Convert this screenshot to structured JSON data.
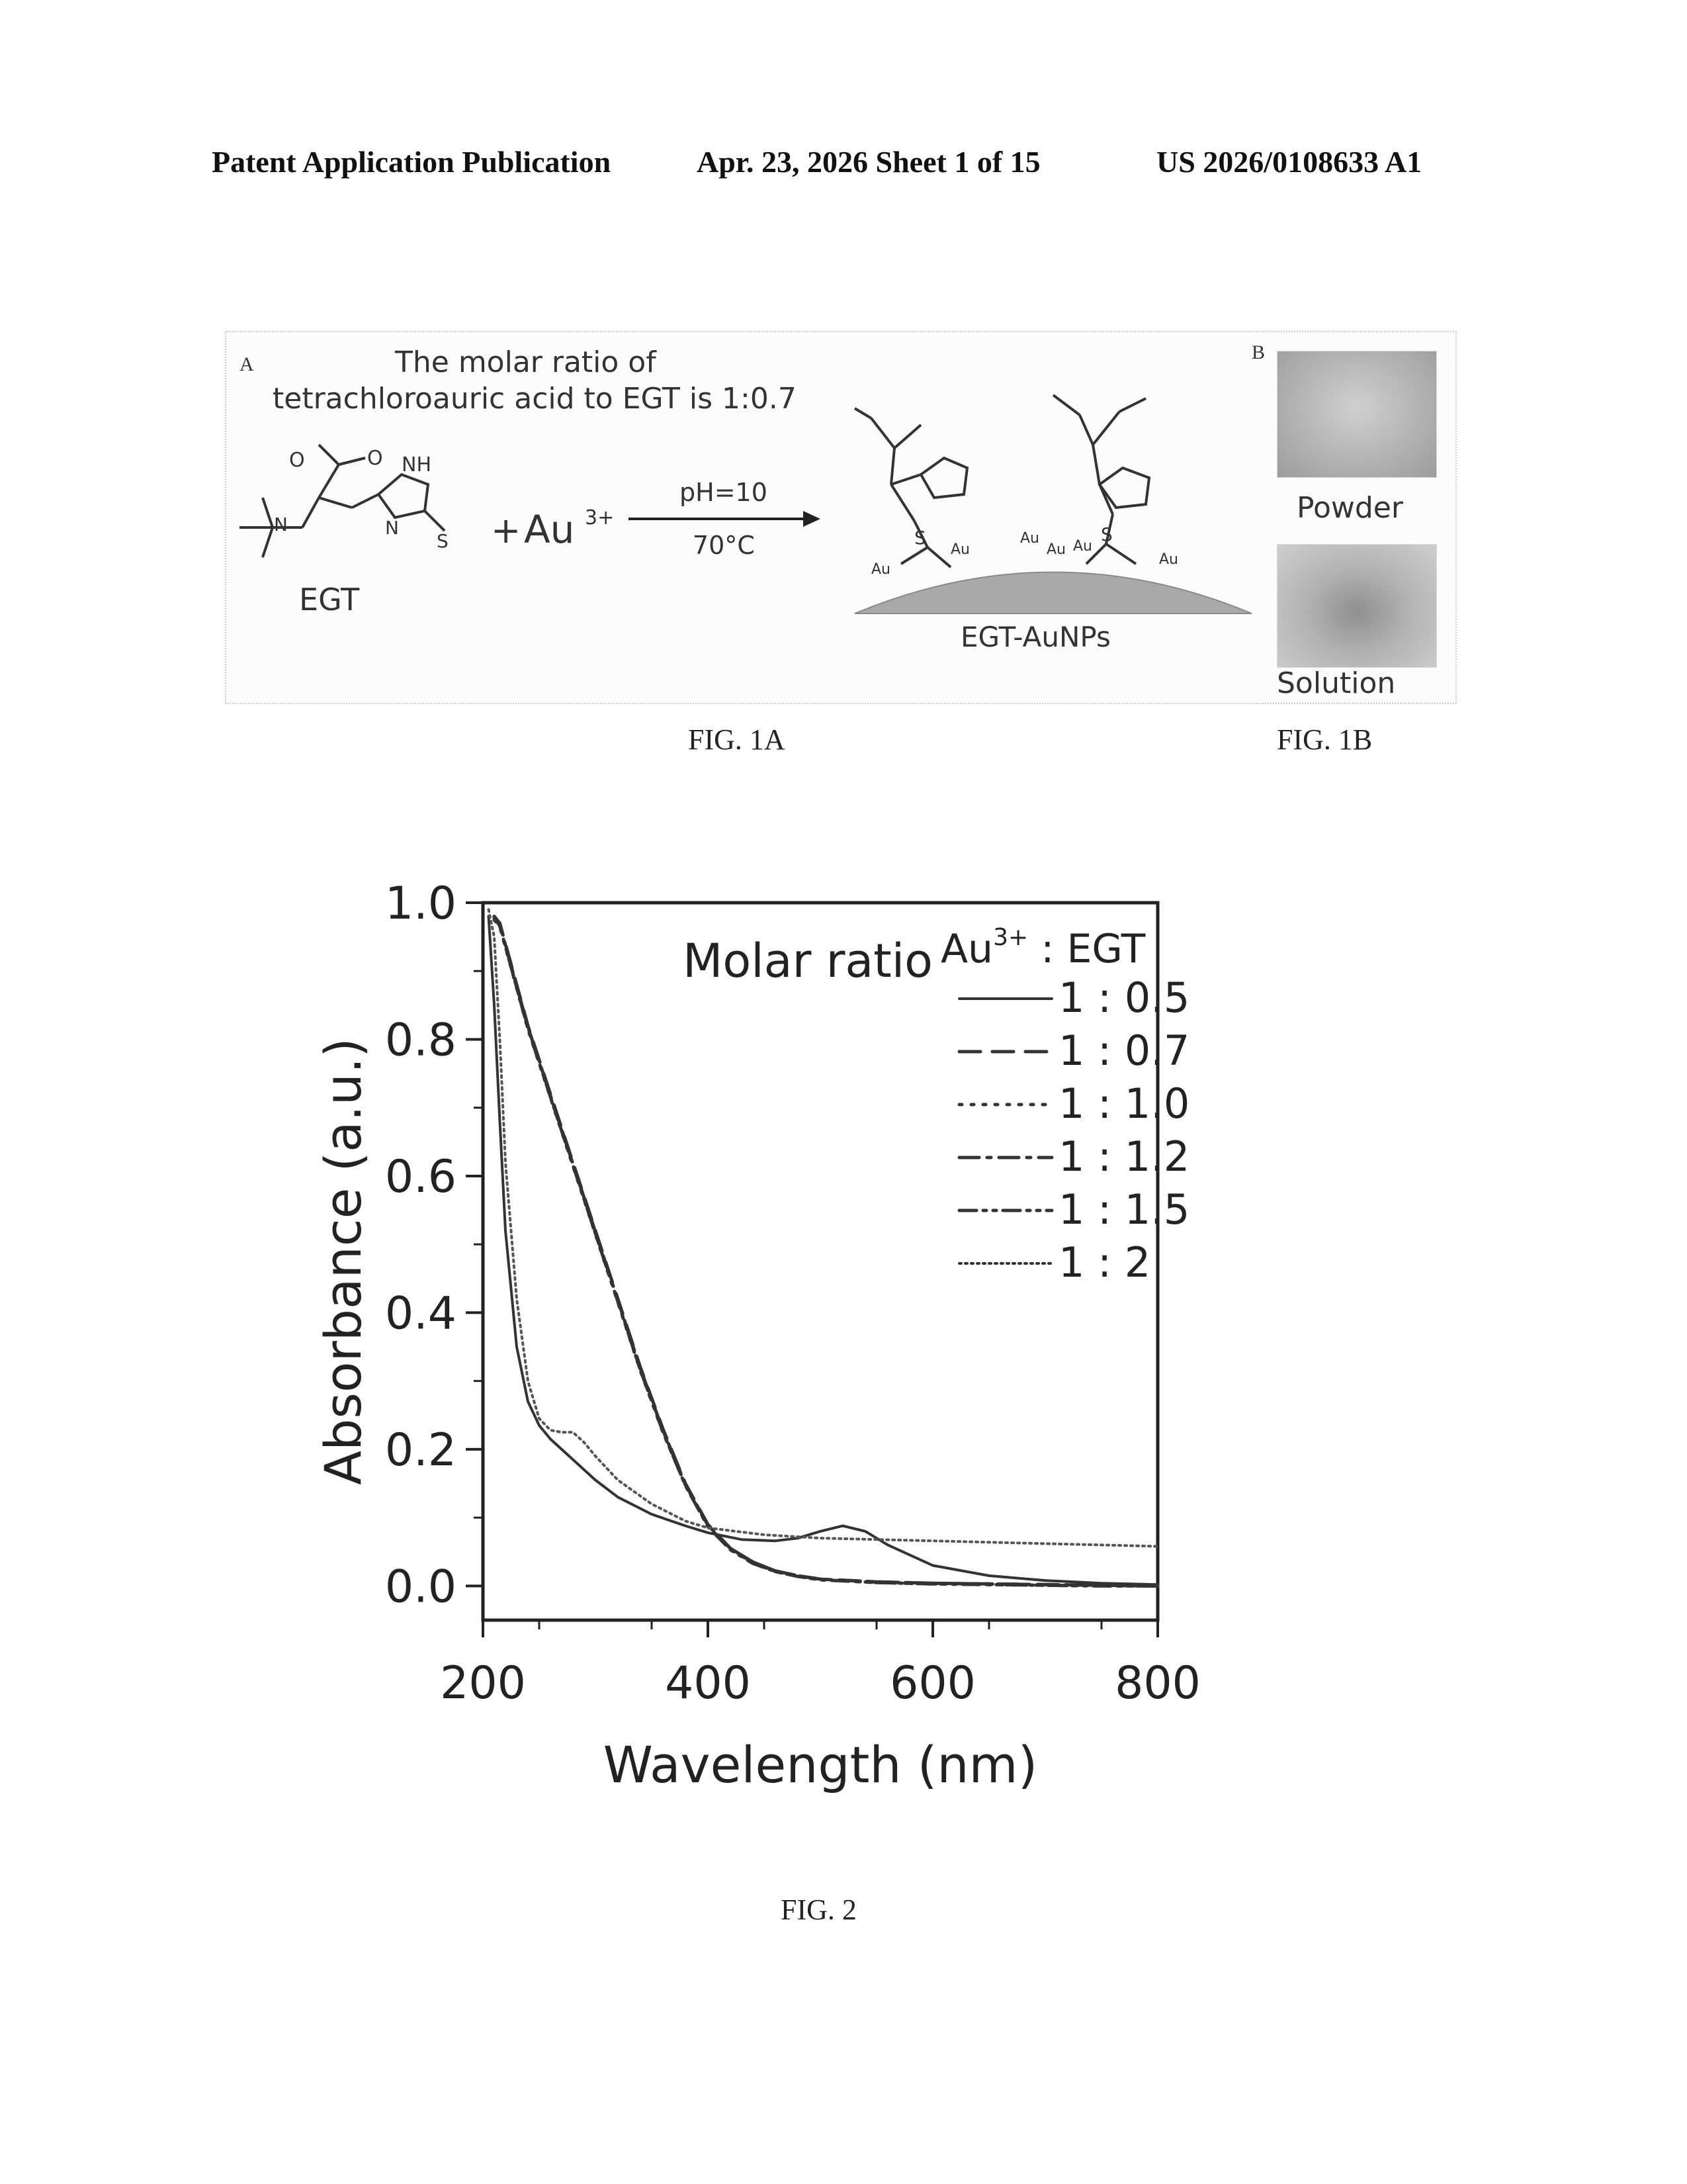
{
  "header": {
    "left": "Patent Application Publication",
    "middle": "Apr. 23, 2026  Sheet 1 of 15",
    "right": "US 2026/0108633 A1"
  },
  "fig1a": {
    "panel_letter": "A",
    "note_line1": "The molar ratio of",
    "note_line2": "tetrachloroauric acid to EGT is 1:0.7",
    "reactant_label": "EGT",
    "plus": "+",
    "reagent": "Au",
    "reagent_charge": "3+",
    "condition_top": "pH=10",
    "condition_bottom": "70°C",
    "product_label": "EGT-AuNPs",
    "surface_atoms": [
      "Au",
      "Au",
      "Au",
      "Au",
      "Au",
      "Au"
    ],
    "caption": "FIG. 1A"
  },
  "fig1b": {
    "panel_letter": "B",
    "photo_top_label": "Powder",
    "photo_bottom_label": "Solution",
    "caption": "FIG. 1B"
  },
  "fig2": {
    "caption": "FIG. 2"
  },
  "chart_data": {
    "type": "line",
    "xlabel": "Wavelength (nm)",
    "ylabel": "Absorbance (a.u.)",
    "xlim": [
      200,
      800
    ],
    "ylim": [
      -0.05,
      1.0
    ],
    "xticks": [
      200,
      400,
      600,
      800
    ],
    "yticks": [
      0.0,
      0.2,
      0.4,
      0.6,
      0.8,
      1.0
    ],
    "xtick_labels": [
      "200",
      "400",
      "600",
      "800"
    ],
    "ytick_labels": [
      "0.0",
      "0.2",
      "0.4",
      "0.6",
      "0.8",
      "1.0"
    ],
    "legend": {
      "title": "Molar ratio",
      "header": "Au",
      "header_sup": "3+",
      "header_suffix": " : EGT",
      "placement": "top-right"
    },
    "grid": false,
    "series": [
      {
        "name": "1 : 0.5",
        "dash": "solid",
        "x": [
          205,
          210,
          215,
          220,
          230,
          240,
          250,
          260,
          270,
          280,
          300,
          320,
          350,
          380,
          400,
          430,
          460,
          480,
          500,
          520,
          540,
          560,
          600,
          650,
          700,
          750,
          800
        ],
        "y": [
          0.98,
          0.85,
          0.68,
          0.52,
          0.35,
          0.27,
          0.235,
          0.215,
          0.2,
          0.185,
          0.155,
          0.13,
          0.105,
          0.088,
          0.078,
          0.068,
          0.066,
          0.07,
          0.08,
          0.088,
          0.08,
          0.06,
          0.03,
          0.015,
          0.008,
          0.004,
          0.002
        ]
      },
      {
        "name": "1 : 0.7",
        "dash": "long-dash",
        "x": [
          210,
          215,
          220,
          230,
          240,
          260,
          280,
          300,
          320,
          340,
          360,
          380,
          400,
          420,
          440,
          460,
          480,
          500,
          550,
          600,
          650,
          700,
          750,
          800
        ],
        "y": [
          0.98,
          0.97,
          0.94,
          0.88,
          0.82,
          0.72,
          0.62,
          0.52,
          0.42,
          0.32,
          0.23,
          0.15,
          0.09,
          0.055,
          0.035,
          0.022,
          0.015,
          0.01,
          0.006,
          0.004,
          0.003,
          0.002,
          0.001,
          0.0
        ]
      },
      {
        "name": "1 : 1.0",
        "dash": "dot",
        "x": [
          210,
          215,
          220,
          230,
          240,
          260,
          280,
          300,
          320,
          340,
          360,
          380,
          400,
          420,
          440,
          460,
          480,
          500,
          550,
          600,
          650,
          700,
          750,
          800
        ],
        "y": [
          0.975,
          0.965,
          0.935,
          0.875,
          0.815,
          0.715,
          0.615,
          0.515,
          0.415,
          0.315,
          0.225,
          0.148,
          0.088,
          0.054,
          0.034,
          0.021,
          0.014,
          0.009,
          0.005,
          0.003,
          0.002,
          0.001,
          0.0,
          0.0
        ]
      },
      {
        "name": "1 : 1.2",
        "dash": "dash-dot",
        "x": [
          210,
          215,
          220,
          230,
          240,
          260,
          280,
          300,
          320,
          340,
          360,
          380,
          400,
          420,
          440,
          460,
          480,
          500,
          550,
          600,
          650,
          700,
          750,
          800
        ],
        "y": [
          0.98,
          0.968,
          0.938,
          0.878,
          0.818,
          0.718,
          0.618,
          0.518,
          0.418,
          0.318,
          0.228,
          0.149,
          0.089,
          0.055,
          0.035,
          0.022,
          0.015,
          0.01,
          0.006,
          0.004,
          0.003,
          0.002,
          0.001,
          0.0
        ]
      },
      {
        "name": "1 : 1.5",
        "dash": "dash-dot-dot",
        "x": [
          210,
          215,
          220,
          230,
          240,
          260,
          280,
          300,
          320,
          340,
          360,
          380,
          400,
          420,
          440,
          460,
          480,
          500,
          550,
          600,
          650,
          700,
          750,
          800
        ],
        "y": [
          0.978,
          0.966,
          0.936,
          0.876,
          0.816,
          0.716,
          0.616,
          0.516,
          0.416,
          0.316,
          0.226,
          0.147,
          0.087,
          0.053,
          0.033,
          0.021,
          0.014,
          0.009,
          0.005,
          0.003,
          0.002,
          0.001,
          0.0,
          0.0
        ]
      },
      {
        "name": "1 : 2",
        "dash": "fine-dot",
        "x": [
          205,
          210,
          215,
          220,
          230,
          240,
          250,
          260,
          270,
          280,
          290,
          300,
          320,
          350,
          380,
          400,
          450,
          500,
          550,
          600,
          650,
          700,
          750,
          800
        ],
        "y": [
          0.99,
          0.95,
          0.8,
          0.62,
          0.42,
          0.3,
          0.245,
          0.228,
          0.225,
          0.225,
          0.21,
          0.19,
          0.155,
          0.12,
          0.095,
          0.085,
          0.075,
          0.07,
          0.068,
          0.066,
          0.064,
          0.062,
          0.06,
          0.058
        ]
      }
    ]
  }
}
